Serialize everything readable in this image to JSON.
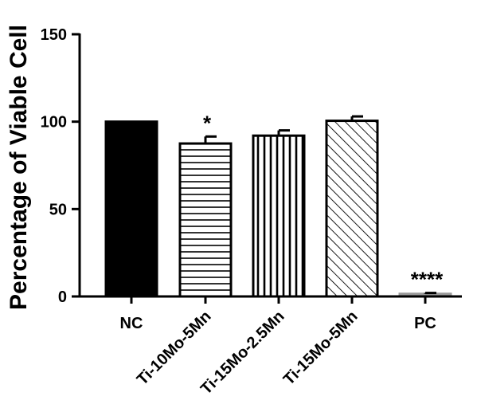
{
  "chart_data": {
    "type": "bar",
    "ylabel": "Percentage of Viable Cell",
    "xlabel": "",
    "title": "",
    "ylim": [
      0,
      150
    ],
    "yticks": [
      0,
      50,
      100,
      150
    ],
    "grid": false,
    "categories": [
      "NC",
      "Ti-10Mo-5Mn",
      "Ti-15Mo-2.5Mn",
      "Ti-15Mo-5Mn",
      "PC"
    ],
    "values": [
      100,
      87.5,
      92,
      100.5,
      1.5
    ],
    "errors": [
      0,
      4,
      3,
      2.5,
      0.5
    ],
    "patterns": [
      "solid",
      "horizontal-lines",
      "vertical-lines",
      "diagonal-lines",
      "solid-gray"
    ],
    "annotations": [
      "",
      "*",
      "",
      "",
      "****"
    ],
    "colors": {
      "bar_fill": "#000000",
      "bar_stroke": "#000000",
      "pc_fill": "#9a9a9a",
      "background": "#ffffff"
    }
  }
}
